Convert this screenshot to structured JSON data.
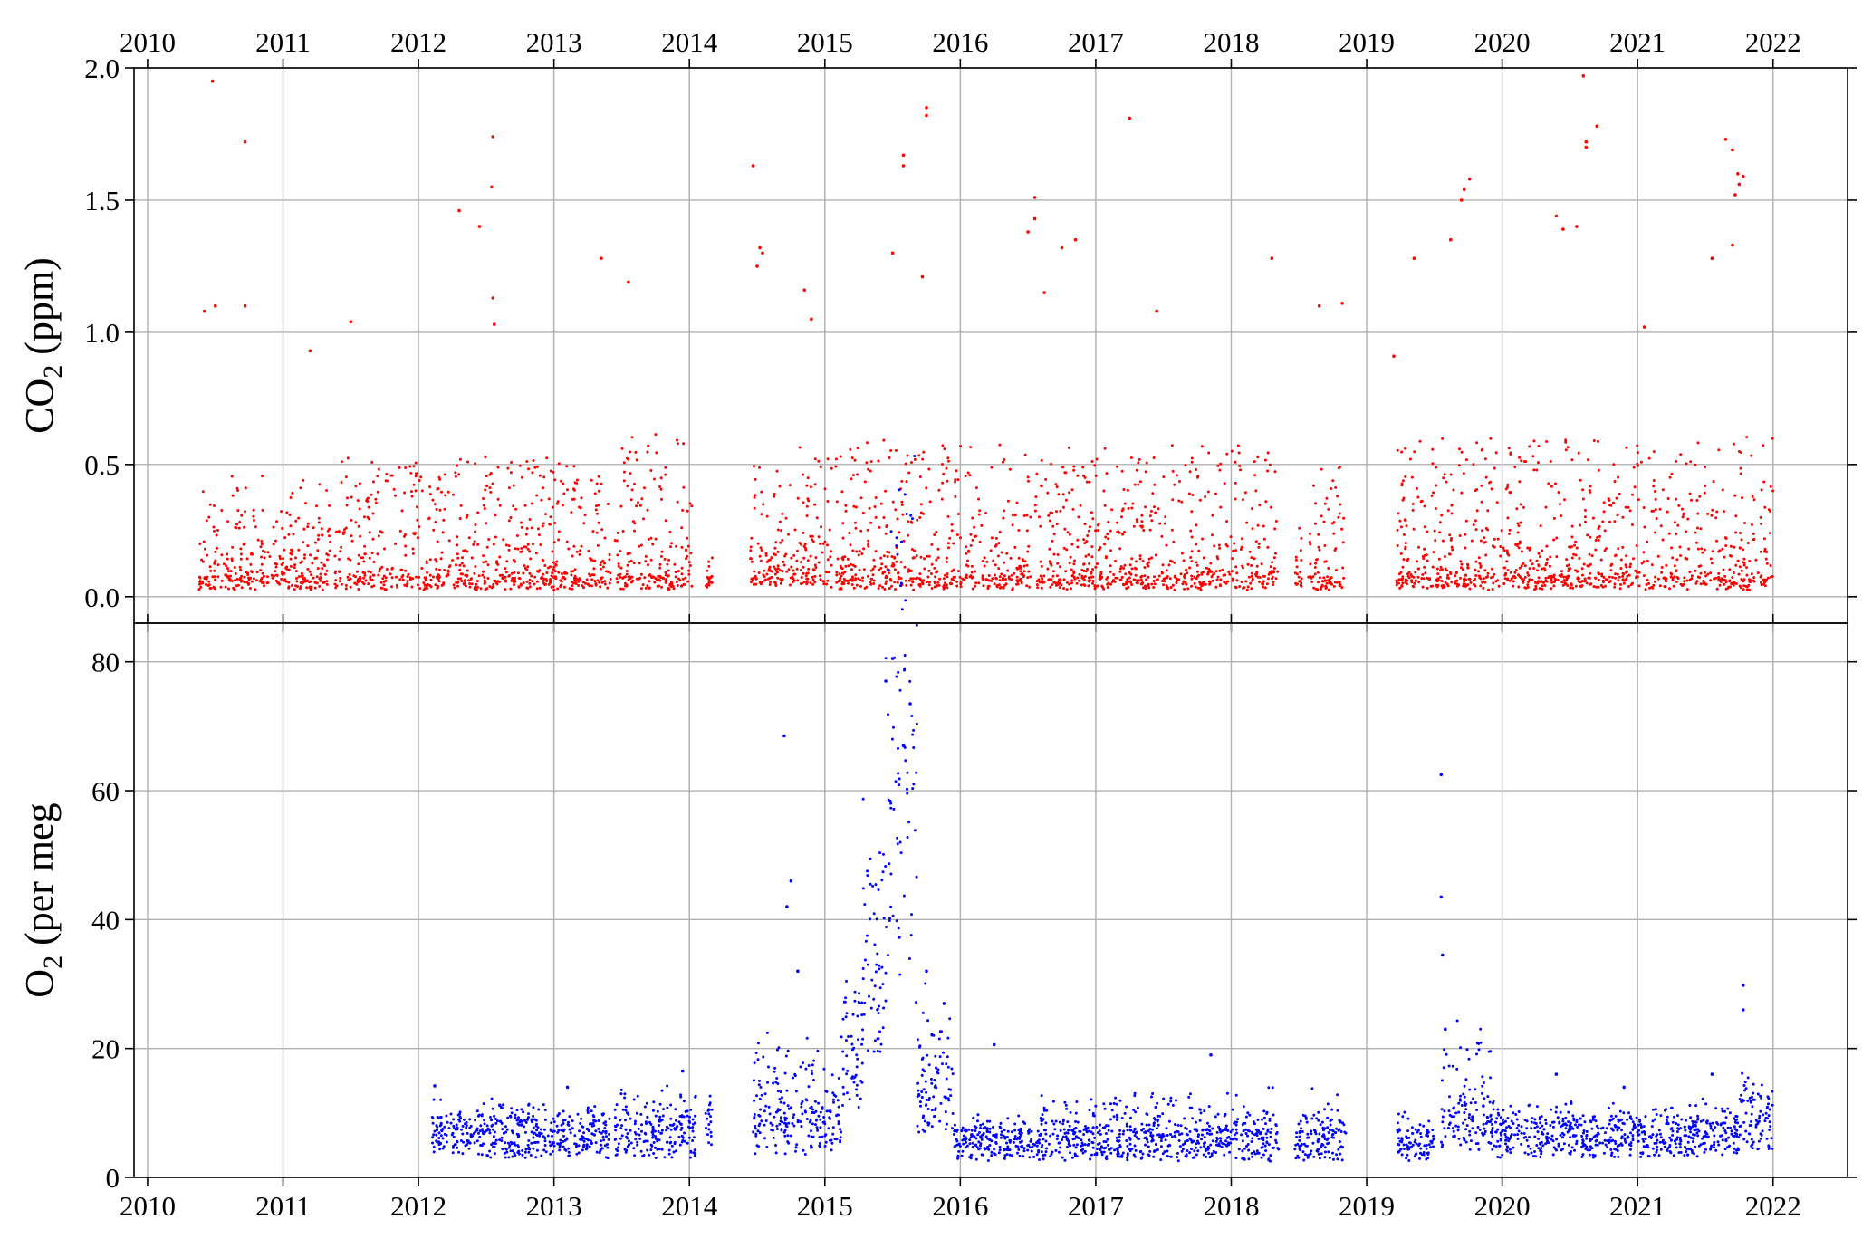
{
  "chart_data": [
    {
      "type": "scatter",
      "panel": "top",
      "title": "",
      "xlabel": "",
      "ylabel_main": "CO",
      "ylabel_sub": "2",
      "ylabel_rest": " (ppm)",
      "xlim": [
        2009.9,
        2022.55
      ],
      "ylim": [
        -0.1,
        2.0
      ],
      "yticks": [
        0.0,
        0.5,
        1.0,
        1.5,
        2.0
      ],
      "ytick_labels": [
        "0.0",
        "0.5",
        "1.0",
        "1.5",
        "2.0"
      ],
      "xticks": [
        2010,
        2011,
        2012,
        2013,
        2014,
        2015,
        2016,
        2017,
        2018,
        2019,
        2020,
        2021,
        2022
      ],
      "xtick_labels": [
        "2010",
        "2011",
        "2012",
        "2013",
        "2014",
        "2015",
        "2016",
        "2017",
        "2018",
        "2019",
        "2020",
        "2021",
        "2022"
      ],
      "grid": true,
      "color": "#ff0000",
      "data_segments": [
        {
          "start": 2010.38,
          "end": 2011.35,
          "base": 0.05,
          "spread": 0.18
        },
        {
          "start": 2011.38,
          "end": 2013.42,
          "base": 0.05,
          "spread": 0.22
        },
        {
          "start": 2013.45,
          "end": 2014.02,
          "base": 0.05,
          "spread": 0.25
        },
        {
          "start": 2014.12,
          "end": 2014.17,
          "base": 0.05,
          "spread": 0.06
        },
        {
          "start": 2014.45,
          "end": 2015.05,
          "base": 0.07,
          "spread": 0.22
        },
        {
          "start": 2015.08,
          "end": 2016.52,
          "base": 0.05,
          "spread": 0.25
        },
        {
          "start": 2016.55,
          "end": 2018.35,
          "base": 0.05,
          "spread": 0.24
        },
        {
          "start": 2018.47,
          "end": 2018.52,
          "base": 0.05,
          "spread": 0.1
        },
        {
          "start": 2018.57,
          "end": 2018.83,
          "base": 0.05,
          "spread": 0.2
        },
        {
          "start": 2019.22,
          "end": 2022.0,
          "base": 0.05,
          "spread": 0.25
        }
      ],
      "outliers": [
        [
          2010.48,
          1.95
        ],
        [
          2010.72,
          1.72
        ],
        [
          2010.72,
          1.1
        ],
        [
          2010.5,
          1.1
        ],
        [
          2010.42,
          1.08
        ],
        [
          2011.2,
          0.93
        ],
        [
          2011.5,
          1.04
        ],
        [
          2012.3,
          1.46
        ],
        [
          2012.45,
          1.4
        ],
        [
          2012.55,
          1.74
        ],
        [
          2012.54,
          1.55
        ],
        [
          2012.55,
          1.13
        ],
        [
          2012.56,
          1.03
        ],
        [
          2013.35,
          1.28
        ],
        [
          2013.55,
          1.19
        ],
        [
          2014.47,
          1.63
        ],
        [
          2014.52,
          1.32
        ],
        [
          2014.54,
          1.3
        ],
        [
          2014.5,
          1.25
        ],
        [
          2014.85,
          1.16
        ],
        [
          2014.9,
          1.05
        ],
        [
          2015.5,
          1.3
        ],
        [
          2015.58,
          1.67
        ],
        [
          2015.58,
          1.63
        ],
        [
          2015.75,
          1.85
        ],
        [
          2015.75,
          1.82
        ],
        [
          2015.72,
          1.21
        ],
        [
          2016.55,
          1.51
        ],
        [
          2016.5,
          1.38
        ],
        [
          2016.55,
          1.43
        ],
        [
          2016.62,
          1.15
        ],
        [
          2016.75,
          1.32
        ],
        [
          2016.85,
          1.35
        ],
        [
          2017.25,
          1.81
        ],
        [
          2017.45,
          1.08
        ],
        [
          2018.3,
          1.28
        ],
        [
          2018.65,
          1.1
        ],
        [
          2018.82,
          1.11
        ],
        [
          2019.2,
          0.91
        ],
        [
          2019.35,
          1.28
        ],
        [
          2019.62,
          1.35
        ],
        [
          2019.72,
          1.54
        ],
        [
          2019.76,
          1.58
        ],
        [
          2019.7,
          1.5
        ],
        [
          2020.4,
          1.44
        ],
        [
          2020.45,
          1.39
        ],
        [
          2020.6,
          1.97
        ],
        [
          2020.62,
          1.72
        ],
        [
          2020.62,
          1.7
        ],
        [
          2020.7,
          1.78
        ],
        [
          2020.55,
          1.4
        ],
        [
          2021.05,
          1.02
        ],
        [
          2021.55,
          1.28
        ],
        [
          2021.65,
          1.73
        ],
        [
          2021.7,
          1.69
        ],
        [
          2021.74,
          1.6
        ],
        [
          2021.75,
          1.56
        ],
        [
          2021.72,
          1.52
        ],
        [
          2021.78,
          1.59
        ],
        [
          2021.7,
          1.33
        ]
      ]
    },
    {
      "type": "scatter",
      "panel": "bottom",
      "title": "",
      "xlabel": "",
      "ylabel_main": "O",
      "ylabel_sub": "2",
      "ylabel_rest": " (per meg",
      "xlim": [
        2009.9,
        2022.55
      ],
      "ylim": [
        0,
        86
      ],
      "yticks": [
        0,
        20,
        40,
        60,
        80
      ],
      "ytick_labels": [
        "0",
        "20",
        "40",
        "60",
        "80"
      ],
      "xticks": [
        2010,
        2011,
        2012,
        2013,
        2014,
        2015,
        2016,
        2017,
        2018,
        2019,
        2020,
        2021,
        2022
      ],
      "xtick_labels": [
        "2010",
        "2011",
        "2012",
        "2013",
        "2014",
        "2015",
        "2016",
        "2017",
        "2018",
        "2019",
        "2020",
        "2021",
        "2022"
      ],
      "grid": true,
      "color": "#0000ff",
      "data_segments": [
        {
          "start": 2012.1,
          "end": 2013.42,
          "base": 6.0,
          "spread": 2.0
        },
        {
          "start": 2013.45,
          "end": 2014.05,
          "base": 6.0,
          "spread": 2.5
        },
        {
          "start": 2014.12,
          "end": 2014.17,
          "base": 7.0,
          "spread": 2.0
        },
        {
          "start": 2014.47,
          "end": 2015.0,
          "base": 7.0,
          "spread": 6.0
        },
        {
          "start": 2015.0,
          "end": 2015.12,
          "base": 8.0,
          "spread": 4.0
        },
        {
          "start": 2015.12,
          "end": 2015.28,
          "base": 17.5,
          "spread": 3.5
        },
        {
          "start": 2015.28,
          "end": 2015.45,
          "base": 34.0,
          "spread": 5.0
        },
        {
          "start": 2015.45,
          "end": 2015.55,
          "base": 55.0,
          "spread": 18.0
        },
        {
          "start": 2015.55,
          "end": 2015.68,
          "base": 52.0,
          "spread": 18.0
        },
        {
          "start": 2015.68,
          "end": 2015.95,
          "base": 12.0,
          "spread": 6.0
        },
        {
          "start": 2015.95,
          "end": 2016.55,
          "base": 5.0,
          "spread": 1.5
        },
        {
          "start": 2016.55,
          "end": 2018.35,
          "base": 5.0,
          "spread": 3.0
        },
        {
          "start": 2018.47,
          "end": 2018.85,
          "base": 5.0,
          "spread": 3.0
        },
        {
          "start": 2019.22,
          "end": 2019.5,
          "base": 5.0,
          "spread": 1.5
        },
        {
          "start": 2019.55,
          "end": 2019.95,
          "base": 8.0,
          "spread": 6.0
        },
        {
          "start": 2019.95,
          "end": 2021.75,
          "base": 6.0,
          "spread": 1.5
        },
        {
          "start": 2021.75,
          "end": 2022.0,
          "base": 8.5,
          "spread": 2.0
        }
      ],
      "outliers": [
        [
          2012.12,
          14.2
        ],
        [
          2012.6,
          11.2
        ],
        [
          2013.1,
          14.0
        ],
        [
          2013.95,
          16.5
        ],
        [
          2014.7,
          68.5
        ],
        [
          2014.75,
          46.0
        ],
        [
          2014.72,
          42.0
        ],
        [
          2014.8,
          32.0
        ],
        [
          2015.5,
          80.5
        ],
        [
          2015.45,
          77.0
        ],
        [
          2015.63,
          73.5
        ],
        [
          2015.58,
          67.0
        ],
        [
          2015.75,
          32.0
        ],
        [
          2015.88,
          27.0
        ],
        [
          2016.25,
          20.6
        ],
        [
          2017.85,
          19.0
        ],
        [
          2019.55,
          62.5
        ],
        [
          2019.55,
          43.5
        ],
        [
          2019.56,
          34.5
        ],
        [
          2019.58,
          23.0
        ],
        [
          2020.4,
          16.0
        ],
        [
          2020.9,
          14.0
        ],
        [
          2021.55,
          16.0
        ],
        [
          2021.78,
          29.8
        ],
        [
          2021.78,
          26.0
        ]
      ]
    }
  ]
}
